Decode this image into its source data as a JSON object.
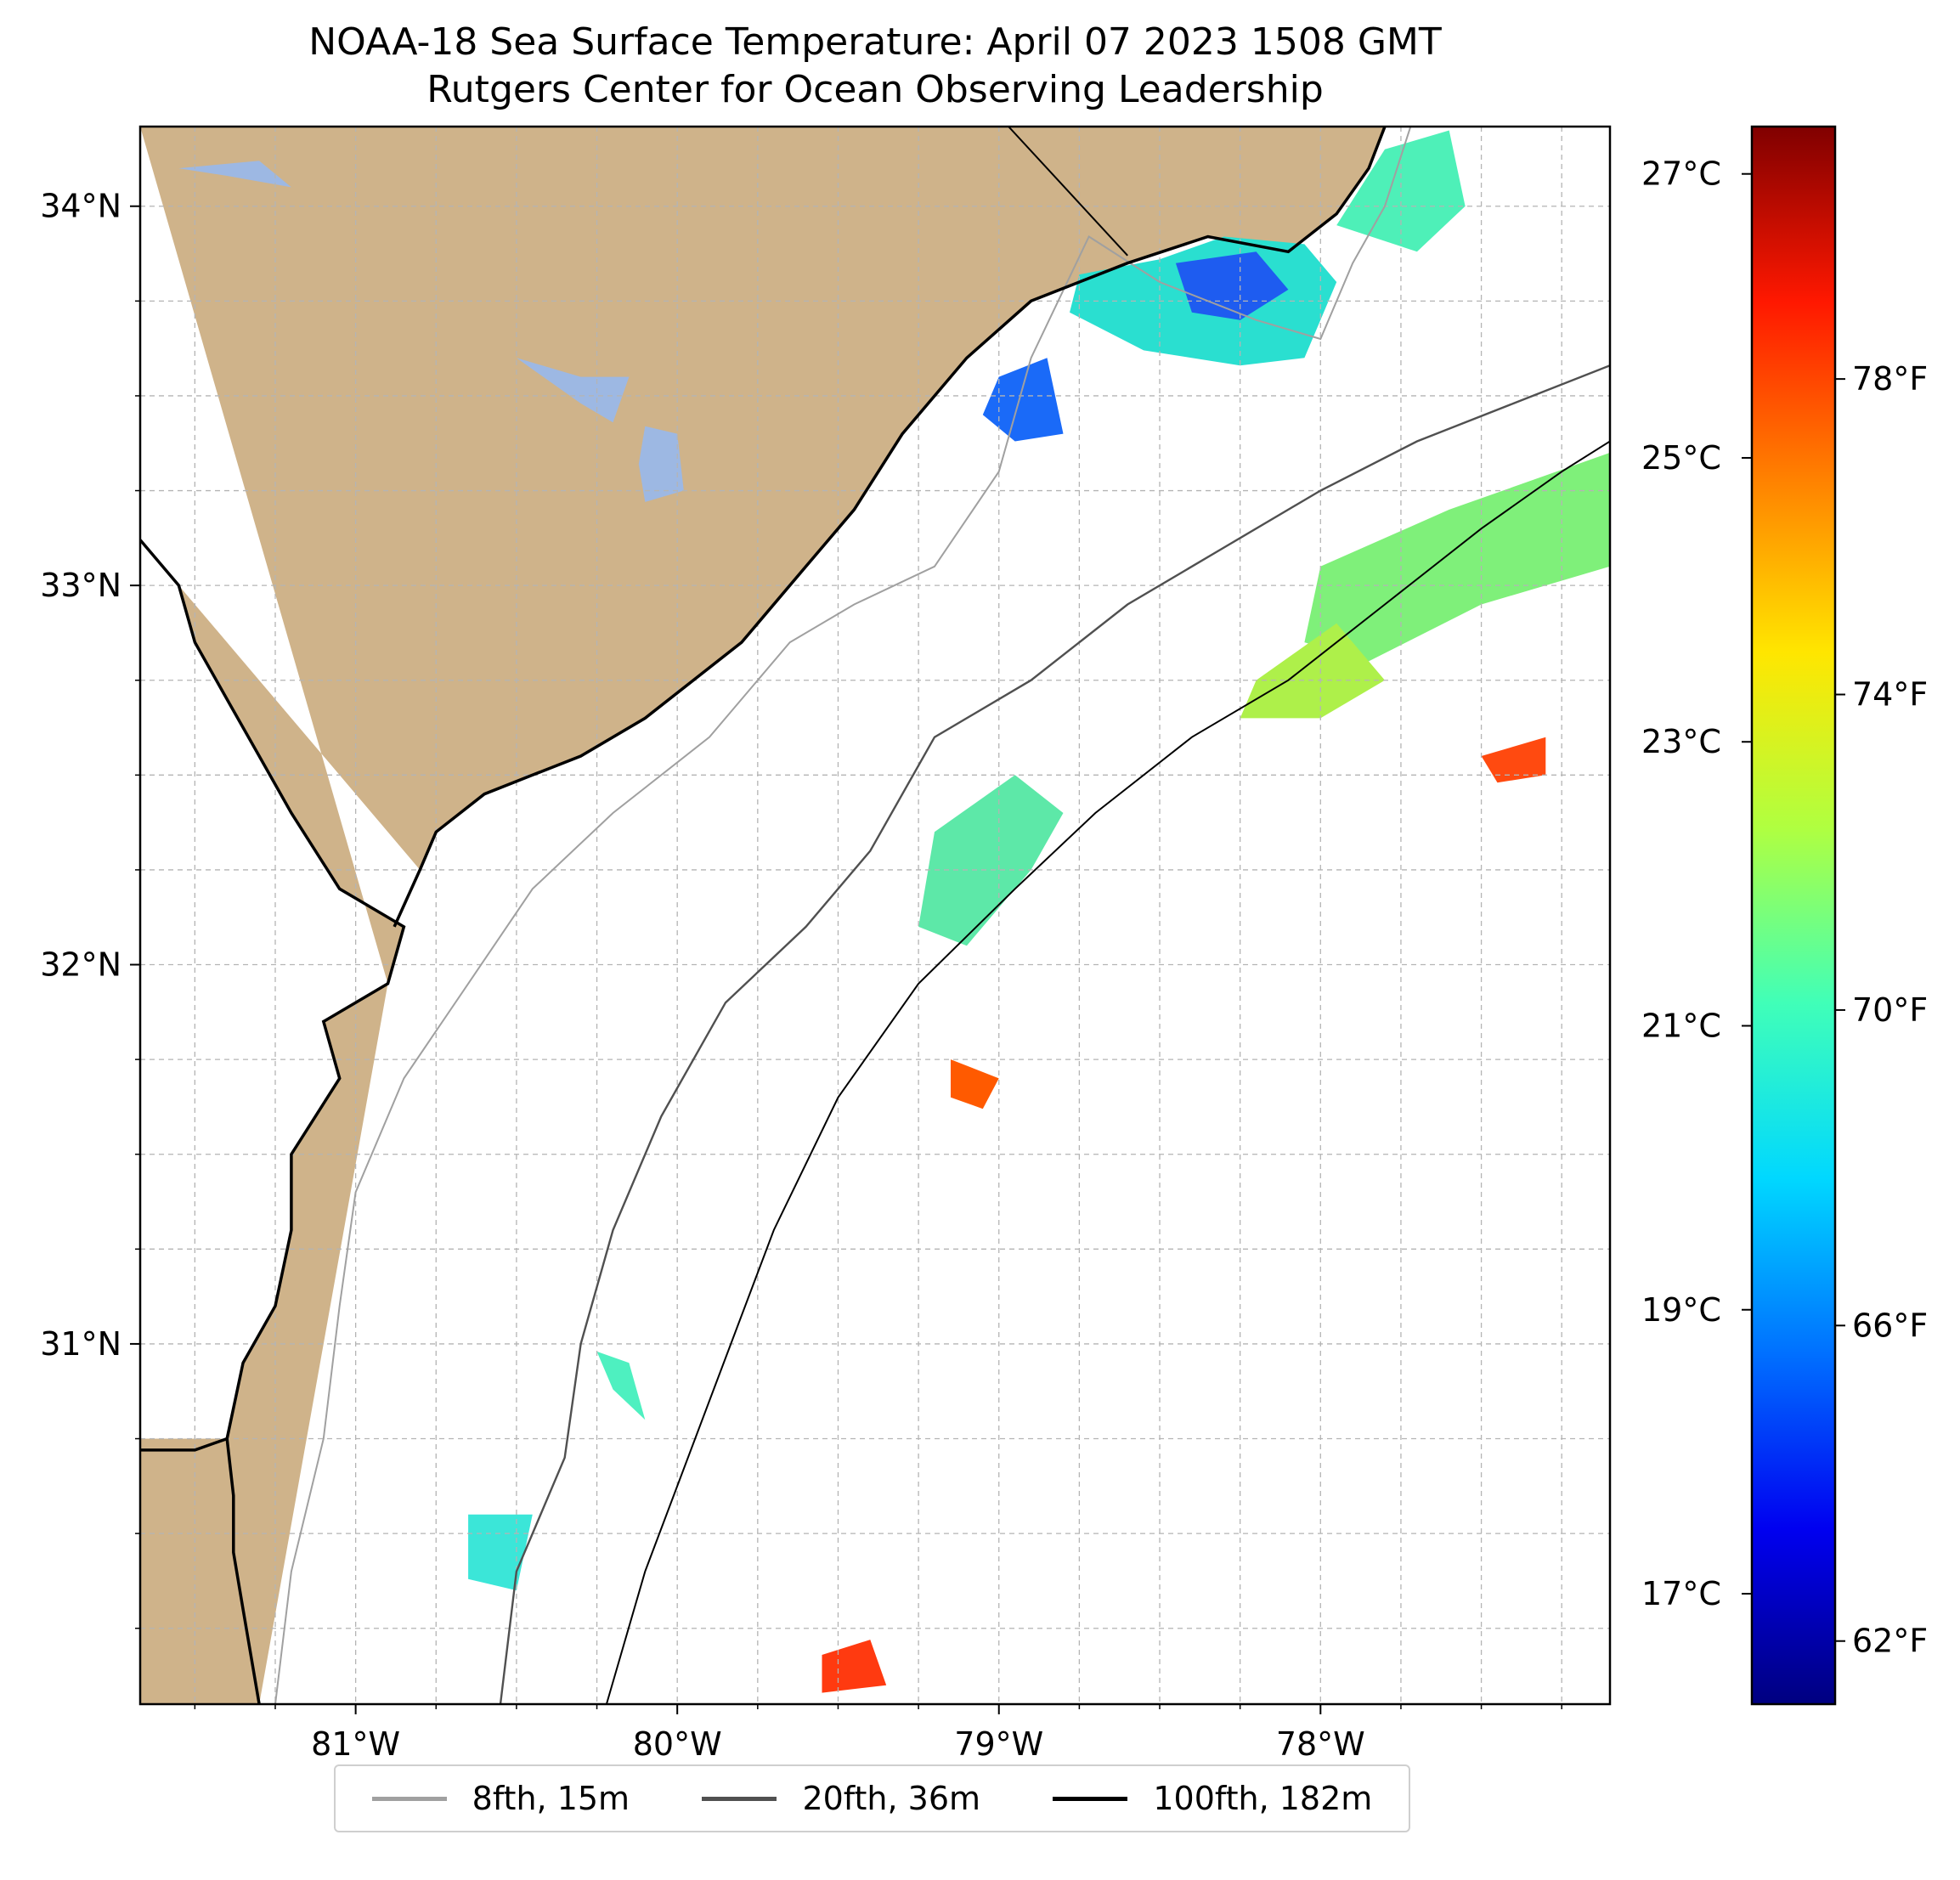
{
  "title": {
    "line1": "NOAA-18 Sea Surface Temperature: April 07 2023 1508 GMT",
    "line2": "Rutgers Center for Ocean Observing Leadership"
  },
  "map": {
    "lon_range": [
      -81.67,
      -77.1
    ],
    "lat_range": [
      30.05,
      34.21
    ],
    "lon_ticks": [
      {
        "value": -81,
        "label": "81°W"
      },
      {
        "value": -80,
        "label": "80°W"
      },
      {
        "value": -79,
        "label": "79°W"
      },
      {
        "value": -78,
        "label": "78°W"
      }
    ],
    "lat_ticks": [
      {
        "value": 34,
        "label": "34°N"
      },
      {
        "value": 33,
        "label": "33°N"
      },
      {
        "value": 32,
        "label": "32°N"
      },
      {
        "value": 31,
        "label": "31°N"
      }
    ],
    "land_color": "#cfb38a",
    "water_color": "#9db8e3",
    "coastline": [
      [
        -81.67,
        33.12
      ],
      [
        -81.55,
        33.0
      ],
      [
        -81.5,
        32.85
      ],
      [
        -81.4,
        32.7
      ],
      [
        -81.3,
        32.55
      ],
      [
        -81.2,
        32.4
      ],
      [
        -81.05,
        32.2
      ],
      [
        -80.85,
        32.1
      ],
      [
        -80.9,
        31.95
      ],
      [
        -81.1,
        31.85
      ],
      [
        -81.05,
        31.7
      ],
      [
        -81.2,
        31.5
      ],
      [
        -81.2,
        31.3
      ],
      [
        -81.25,
        31.1
      ],
      [
        -81.35,
        30.95
      ],
      [
        -81.4,
        30.75
      ],
      [
        -81.5,
        30.72
      ],
      [
        -81.67,
        30.72
      ]
    ],
    "coastline_east": [
      [
        -81.4,
        30.75
      ],
      [
        -81.38,
        30.6
      ],
      [
        -81.38,
        30.45
      ],
      [
        -81.35,
        30.3
      ],
      [
        -81.3,
        30.05
      ]
    ],
    "coast_upper": [
      [
        -80.88,
        32.1
      ],
      [
        -80.8,
        32.25
      ],
      [
        -80.75,
        32.35
      ],
      [
        -80.6,
        32.45
      ],
      [
        -80.45,
        32.5
      ],
      [
        -80.3,
        32.55
      ],
      [
        -80.1,
        32.65
      ],
      [
        -79.95,
        32.75
      ],
      [
        -79.8,
        32.85
      ],
      [
        -79.6,
        33.05
      ],
      [
        -79.45,
        33.2
      ],
      [
        -79.3,
        33.4
      ],
      [
        -79.1,
        33.6
      ],
      [
        -78.9,
        33.75
      ],
      [
        -78.6,
        33.85
      ],
      [
        -78.35,
        33.92
      ],
      [
        -78.1,
        33.88
      ],
      [
        -77.95,
        33.98
      ],
      [
        -77.85,
        34.1
      ],
      [
        -77.8,
        34.21
      ]
    ],
    "state_line": [
      [
        -78.6,
        33.87
      ],
      [
        -78.97,
        34.21
      ]
    ],
    "lakes": [
      {
        "name": "lake-marion",
        "points": [
          [
            -80.5,
            33.6
          ],
          [
            -80.3,
            33.48
          ],
          [
            -80.2,
            33.43
          ],
          [
            -80.15,
            33.55
          ],
          [
            -80.3,
            33.55
          ]
        ]
      },
      {
        "name": "lake-moultrie",
        "points": [
          [
            -80.1,
            33.42
          ],
          [
            -80.0,
            33.4
          ],
          [
            -79.98,
            33.25
          ],
          [
            -80.1,
            33.22
          ],
          [
            -80.12,
            33.32
          ]
        ]
      },
      {
        "name": "lake-north",
        "points": [
          [
            -81.55,
            34.1
          ],
          [
            -81.3,
            34.12
          ],
          [
            -81.2,
            34.05
          ],
          [
            -81.4,
            34.08
          ]
        ]
      }
    ],
    "iso_8fth": [
      [
        -81.25,
        30.05
      ],
      [
        -81.2,
        30.4
      ],
      [
        -81.1,
        30.75
      ],
      [
        -81.05,
        31.1
      ],
      [
        -81.0,
        31.4
      ],
      [
        -80.85,
        31.7
      ],
      [
        -80.65,
        31.95
      ],
      [
        -80.45,
        32.2
      ],
      [
        -80.2,
        32.4
      ],
      [
        -79.9,
        32.6
      ],
      [
        -79.65,
        32.85
      ],
      [
        -79.45,
        32.95
      ],
      [
        -79.2,
        33.05
      ],
      [
        -79.0,
        33.3
      ],
      [
        -78.9,
        33.6
      ],
      [
        -78.72,
        33.92
      ],
      [
        -78.5,
        33.8
      ],
      [
        -78.2,
        33.7
      ],
      [
        -78.0,
        33.65
      ],
      [
        -77.9,
        33.85
      ],
      [
        -77.8,
        34.0
      ],
      [
        -77.72,
        34.21
      ]
    ],
    "iso_20fth": [
      [
        -80.55,
        30.05
      ],
      [
        -80.5,
        30.4
      ],
      [
        -80.35,
        30.7
      ],
      [
        -80.3,
        31.0
      ],
      [
        -80.2,
        31.3
      ],
      [
        -80.05,
        31.6
      ],
      [
        -79.85,
        31.9
      ],
      [
        -79.6,
        32.1
      ],
      [
        -79.4,
        32.3
      ],
      [
        -79.2,
        32.6
      ],
      [
        -78.9,
        32.75
      ],
      [
        -78.6,
        32.95
      ],
      [
        -78.3,
        33.1
      ],
      [
        -78.0,
        33.25
      ],
      [
        -77.7,
        33.38
      ],
      [
        -77.4,
        33.48
      ],
      [
        -77.1,
        33.58
      ]
    ],
    "iso_100fth": [
      [
        -80.22,
        30.05
      ],
      [
        -80.1,
        30.4
      ],
      [
        -79.9,
        30.85
      ],
      [
        -79.7,
        31.3
      ],
      [
        -79.5,
        31.65
      ],
      [
        -79.25,
        31.95
      ],
      [
        -78.95,
        32.2
      ],
      [
        -78.7,
        32.4
      ],
      [
        -78.4,
        32.6
      ],
      [
        -78.1,
        32.75
      ],
      [
        -77.8,
        32.95
      ],
      [
        -77.5,
        33.15
      ],
      [
        -77.25,
        33.3
      ],
      [
        -77.1,
        33.38
      ]
    ],
    "sst_patches": [
      {
        "name": "sst-patch-long-bay",
        "color": "#2adfd0",
        "points": [
          [
            -78.75,
            33.82
          ],
          [
            -78.5,
            33.86
          ],
          [
            -78.3,
            33.92
          ],
          [
            -78.05,
            33.9
          ],
          [
            -77.95,
            33.8
          ],
          [
            -78.05,
            33.6
          ],
          [
            -78.25,
            33.58
          ],
          [
            -78.55,
            33.62
          ],
          [
            -78.78,
            33.72
          ]
        ]
      },
      {
        "name": "sst-patch-long-bay-core",
        "color": "#1e5cf0",
        "points": [
          [
            -78.45,
            33.85
          ],
          [
            -78.2,
            33.88
          ],
          [
            -78.1,
            33.78
          ],
          [
            -78.25,
            33.7
          ],
          [
            -78.4,
            33.72
          ]
        ]
      },
      {
        "name": "sst-patch-nc-shelf",
        "color": "#4ef0b8",
        "points": [
          [
            -77.95,
            33.95
          ],
          [
            -77.8,
            34.15
          ],
          [
            -77.6,
            34.2
          ],
          [
            -77.55,
            34.0
          ],
          [
            -77.7,
            33.88
          ]
        ]
      },
      {
        "name": "sst-patch-myrtle",
        "color": "#1a6af8",
        "points": [
          [
            -79.0,
            33.55
          ],
          [
            -78.85,
            33.6
          ],
          [
            -78.8,
            33.4
          ],
          [
            -78.95,
            33.38
          ],
          [
            -79.05,
            33.45
          ]
        ]
      },
      {
        "name": "sst-patch-gulfstream-ne",
        "color": "#7ff07a",
        "points": [
          [
            -78.0,
            33.05
          ],
          [
            -77.6,
            33.2
          ],
          [
            -77.1,
            33.35
          ],
          [
            -77.1,
            33.05
          ],
          [
            -77.5,
            32.95
          ],
          [
            -77.85,
            32.8
          ],
          [
            -78.05,
            32.85
          ]
        ]
      },
      {
        "name": "sst-patch-gulfstream-s",
        "color": "#aef04a",
        "points": [
          [
            -78.2,
            32.75
          ],
          [
            -77.95,
            32.9
          ],
          [
            -77.8,
            32.75
          ],
          [
            -78.0,
            32.65
          ],
          [
            -78.25,
            32.65
          ]
        ]
      },
      {
        "name": "sst-patch-mid-shelf",
        "color": "#5de8a8",
        "points": [
          [
            -79.2,
            32.35
          ],
          [
            -78.95,
            32.5
          ],
          [
            -78.8,
            32.4
          ],
          [
            -78.9,
            32.25
          ],
          [
            -79.1,
            32.05
          ],
          [
            -79.25,
            32.1
          ]
        ]
      },
      {
        "name": "sst-patch-warm-east",
        "color": "#ff4a10",
        "points": [
          [
            -77.5,
            32.55
          ],
          [
            -77.3,
            32.6
          ],
          [
            -77.3,
            32.5
          ],
          [
            -77.45,
            32.48
          ]
        ]
      },
      {
        "name": "sst-patch-warm-mid",
        "color": "#ff5a00",
        "points": [
          [
            -79.15,
            31.75
          ],
          [
            -79.0,
            31.7
          ],
          [
            -79.05,
            31.62
          ],
          [
            -79.15,
            31.65
          ]
        ]
      },
      {
        "name": "sst-patch-south-1",
        "color": "#4ef0c0",
        "points": [
          [
            -80.25,
            30.98
          ],
          [
            -80.15,
            30.95
          ],
          [
            -80.1,
            30.8
          ],
          [
            -80.2,
            30.88
          ]
        ]
      },
      {
        "name": "sst-patch-south-2",
        "color": "#3be6d8",
        "points": [
          [
            -80.65,
            30.55
          ],
          [
            -80.45,
            30.55
          ],
          [
            -80.5,
            30.35
          ],
          [
            -80.65,
            30.38
          ]
        ]
      },
      {
        "name": "sst-patch-south-warm",
        "color": "#ff3a10",
        "points": [
          [
            -79.55,
            30.18
          ],
          [
            -79.4,
            30.22
          ],
          [
            -79.35,
            30.1
          ],
          [
            -79.55,
            30.08
          ]
        ]
      }
    ]
  },
  "colorbar": {
    "vmin": 61.2,
    "vmax": 81.2,
    "stops": [
      "#000080",
      "#0000f0",
      "#0070ff",
      "#00d8ff",
      "#40ffb8",
      "#b0ff40",
      "#ffe600",
      "#ff8000",
      "#ff1800",
      "#800000"
    ],
    "c_ticks": [
      {
        "value": 62.6,
        "label": "17°C"
      },
      {
        "value": 66.2,
        "label": "19°C"
      },
      {
        "value": 69.8,
        "label": "21°C"
      },
      {
        "value": 73.4,
        "label": "23°C"
      },
      {
        "value": 77.0,
        "label": "25°C"
      },
      {
        "value": 80.6,
        "label": "27°C"
      }
    ],
    "f_ticks": [
      {
        "value": 62,
        "label": "62°F"
      },
      {
        "value": 66,
        "label": "66°F"
      },
      {
        "value": 70,
        "label": "70°F"
      },
      {
        "value": 74,
        "label": "74°F"
      },
      {
        "value": 78,
        "label": "78°F"
      }
    ]
  },
  "legend": {
    "entries": [
      {
        "label": "8fth, 15m",
        "color": "#a0a0a0"
      },
      {
        "label": "20fth, 36m",
        "color": "#505050"
      },
      {
        "label": "100fth, 182m",
        "color": "#000000"
      }
    ]
  }
}
